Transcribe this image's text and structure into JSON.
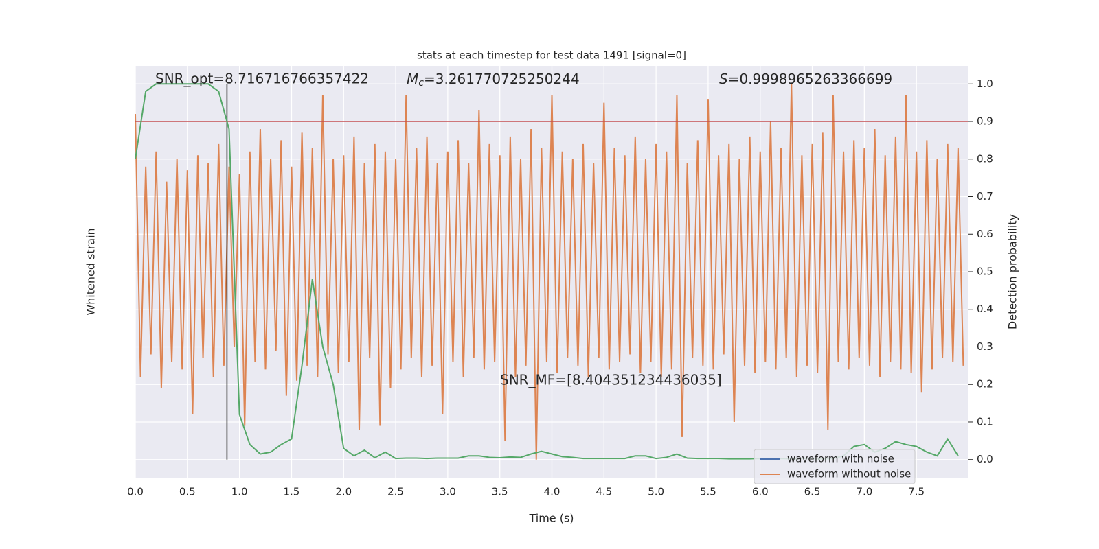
{
  "chart_data": {
    "type": "line",
    "title": "stats at each timestep for test data 1491 [signal=0]",
    "xlabel": "Time (s)",
    "ylabel": "Whitened strain",
    "y2label": "Detection probability",
    "annotations": [
      {
        "text": "SNR_opt=8.716716766357422"
      },
      {
        "symbol": "M",
        "subscript": "c",
        "text": "=3.261770725250244"
      },
      {
        "symbol": "S",
        "text": "=0.9998965263366699"
      },
      {
        "text": "SNR_MF=[8.404351234436035]"
      }
    ],
    "xlim": [
      0,
      8
    ],
    "ylim": [
      -0.048,
      1.048
    ],
    "grid": true,
    "legend": "lower right",
    "xticks": [
      {
        "value": 0,
        "label": "0.0"
      },
      {
        "value": 0.5,
        "label": "0.5"
      },
      {
        "value": 1,
        "label": "1.0"
      },
      {
        "value": 1.5,
        "label": "1.5"
      },
      {
        "value": 2,
        "label": "2.0"
      },
      {
        "value": 2.5,
        "label": "2.5"
      },
      {
        "value": 3,
        "label": "3.0"
      },
      {
        "value": 3.5,
        "label": "3.5"
      },
      {
        "value": 4,
        "label": "4.0"
      },
      {
        "value": 4.5,
        "label": "4.5"
      },
      {
        "value": 5,
        "label": "5.0"
      },
      {
        "value": 5.5,
        "label": "5.5"
      },
      {
        "value": 6,
        "label": "6.0"
      },
      {
        "value": 6.5,
        "label": "6.5"
      },
      {
        "value": 7,
        "label": "7.0"
      },
      {
        "value": 7.5,
        "label": "7.5"
      }
    ],
    "yticks": [
      {
        "value": 0,
        "label": "0.0"
      },
      {
        "value": 0.1,
        "label": "0.1"
      },
      {
        "value": 0.2,
        "label": "0.2"
      },
      {
        "value": 0.3,
        "label": "0.3"
      },
      {
        "value": 0.4,
        "label": "0.4"
      },
      {
        "value": 0.5,
        "label": "0.5"
      },
      {
        "value": 0.6,
        "label": "0.6"
      },
      {
        "value": 0.7,
        "label": "0.7"
      },
      {
        "value": 0.8,
        "label": "0.8"
      },
      {
        "value": 0.9,
        "label": "0.9"
      },
      {
        "value": 1,
        "label": "1.0"
      }
    ],
    "threshold": 0.9,
    "threshold_color": "#c44e52",
    "marker_x": 0.88,
    "marker_color": "#000000",
    "series": [
      {
        "name": "waveform with noise",
        "color": "#4c72b0",
        "x": [],
        "values": []
      },
      {
        "name": "waveform without noise",
        "color": "#dd8452",
        "x": [
          0,
          0.05,
          0.1,
          0.15,
          0.2,
          0.25,
          0.3,
          0.35,
          0.4,
          0.45,
          0.5,
          0.55,
          0.6,
          0.65,
          0.7,
          0.75,
          0.8,
          0.85,
          0.9,
          0.95,
          1,
          1.05,
          1.1,
          1.15,
          1.2,
          1.25,
          1.3,
          1.35,
          1.4,
          1.45,
          1.5,
          1.55,
          1.6,
          1.65,
          1.7,
          1.75,
          1.8,
          1.85,
          1.9,
          1.95,
          2,
          2.05,
          2.1,
          2.15,
          2.2,
          2.25,
          2.3,
          2.35,
          2.4,
          2.45,
          2.5,
          2.55,
          2.6,
          2.65,
          2.7,
          2.75,
          2.8,
          2.85,
          2.9,
          2.95,
          3,
          3.05,
          3.1,
          3.15,
          3.2,
          3.25,
          3.3,
          3.35,
          3.4,
          3.45,
          3.5,
          3.55,
          3.6,
          3.65,
          3.7,
          3.75,
          3.8,
          3.85,
          3.9,
          3.95,
          4,
          4.05,
          4.1,
          4.15,
          4.2,
          4.25,
          4.3,
          4.35,
          4.4,
          4.45,
          4.5,
          4.55,
          4.6,
          4.65,
          4.7,
          4.75,
          4.8,
          4.85,
          4.9,
          4.95,
          5,
          5.05,
          5.1,
          5.15,
          5.2,
          5.25,
          5.3,
          5.35,
          5.4,
          5.45,
          5.5,
          5.55,
          5.6,
          5.65,
          5.7,
          5.75,
          5.8,
          5.85,
          5.9,
          5.95,
          6,
          6.05,
          6.1,
          6.15,
          6.2,
          6.25,
          6.3,
          6.35,
          6.4,
          6.45,
          6.5,
          6.55,
          6.6,
          6.65,
          6.7,
          6.75,
          6.8,
          6.85,
          6.9,
          6.95,
          7,
          7.05,
          7.1,
          7.15,
          7.2,
          7.25,
          7.3,
          7.35,
          7.4,
          7.45,
          7.5,
          7.55,
          7.6,
          7.65,
          7.7,
          7.75,
          7.8,
          7.85,
          7.9,
          7.95
        ],
        "values": [
          0.92,
          0.22,
          0.78,
          0.28,
          0.82,
          0.19,
          0.74,
          0.26,
          0.8,
          0.24,
          0.77,
          0.12,
          0.81,
          0.27,
          0.79,
          0.22,
          0.84,
          0.25,
          0.78,
          0.3,
          0.76,
          0.09,
          0.82,
          0.26,
          0.88,
          0.24,
          0.8,
          0.29,
          0.85,
          0.17,
          0.78,
          0.21,
          0.87,
          0.25,
          0.83,
          0.22,
          0.97,
          0.28,
          0.8,
          0.23,
          0.81,
          0.26,
          0.86,
          0.08,
          0.79,
          0.27,
          0.84,
          0.09,
          0.82,
          0.19,
          0.8,
          0.24,
          0.97,
          0.27,
          0.83,
          0.22,
          0.86,
          0.25,
          0.79,
          0.12,
          0.82,
          0.26,
          0.85,
          0.22,
          0.79,
          0.27,
          0.93,
          0.24,
          0.84,
          0.26,
          0.81,
          0.05,
          0.86,
          0.22,
          0.8,
          0.25,
          0.88,
          0,
          0.83,
          0.26,
          0.97,
          0.23,
          0.82,
          0.27,
          0.8,
          0.25,
          0.84,
          0.22,
          0.79,
          0.27,
          0.95,
          0.24,
          0.83,
          0.26,
          0.81,
          0.28,
          0.86,
          0.23,
          0.8,
          0.26,
          0.84,
          0.22,
          0.82,
          0.24,
          0.97,
          0.06,
          0.79,
          0.27,
          0.85,
          0.25,
          0.96,
          0.24,
          0.81,
          0.28,
          0.84,
          0.1,
          0.8,
          0.25,
          0.86,
          0.23,
          0.82,
          0.26,
          0.9,
          0.24,
          0.83,
          0.27,
          1,
          0.22,
          0.81,
          0.25,
          0.84,
          0.23,
          0.87,
          0.08,
          0.97,
          0.26,
          0.82,
          0.24,
          0.85,
          0.27,
          0.83,
          0.25,
          0.88,
          0.22,
          0.81,
          0.26,
          0.86,
          0.24,
          0.97,
          0.23,
          0.82,
          0.18,
          0.85,
          0.24,
          0.8,
          0.27,
          0.84,
          0.26,
          0.83,
          0.25
        ]
      }
    ],
    "probability": {
      "color": "#55a868",
      "x": [
        0,
        0.1,
        0.2,
        0.3,
        0.4,
        0.5,
        0.6,
        0.7,
        0.8,
        0.9,
        1,
        1.1,
        1.2,
        1.3,
        1.4,
        1.5,
        1.6,
        1.7,
        1.8,
        1.9,
        2,
        2.1,
        2.2,
        2.3,
        2.4,
        2.5,
        2.6,
        2.7,
        2.8,
        2.9,
        3,
        3.1,
        3.2,
        3.3,
        3.4,
        3.5,
        3.6,
        3.7,
        3.8,
        3.9,
        4,
        4.1,
        4.2,
        4.3,
        4.4,
        4.5,
        4.6,
        4.7,
        4.8,
        4.9,
        5,
        5.1,
        5.2,
        5.3,
        5.4,
        5.5,
        5.6,
        5.7,
        5.8,
        5.9,
        6,
        6.1,
        6.2,
        6.3,
        6.4,
        6.5,
        6.6,
        6.7,
        6.8,
        6.9,
        7,
        7.1,
        7.2,
        7.3,
        7.4,
        7.5,
        7.6,
        7.7,
        7.8,
        7.9
      ],
      "values": [
        0.8,
        0.98,
        1,
        1,
        1,
        1,
        1,
        1,
        0.98,
        0.88,
        0.12,
        0.04,
        0.015,
        0.02,
        0.04,
        0.055,
        0.25,
        0.48,
        0.3,
        0.2,
        0.03,
        0.01,
        0.025,
        0.005,
        0.02,
        0.003,
        0.004,
        0.004,
        0.003,
        0.004,
        0.004,
        0.004,
        0.01,
        0.01,
        0.006,
        0.005,
        0.007,
        0.006,
        0.015,
        0.022,
        0.015,
        0.008,
        0.006,
        0.003,
        0.003,
        0.003,
        0.003,
        0.003,
        0.01,
        0.01,
        0.003,
        0.006,
        0.015,
        0.004,
        0.003,
        0.003,
        0.003,
        0.002,
        0.002,
        0.002,
        0.003,
        0.002,
        0.003,
        0.002,
        0.003,
        0.003,
        0.002,
        0.003,
        0.01,
        0.035,
        0.04,
        0.02,
        0.03,
        0.048,
        0.04,
        0.035,
        0.02,
        0.01,
        0.055,
        0.01
      ]
    }
  }
}
